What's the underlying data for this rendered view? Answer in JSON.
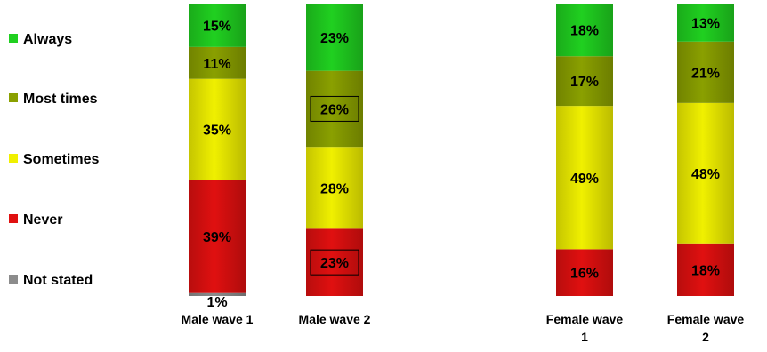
{
  "chart_data": {
    "type": "bar",
    "stacked": true,
    "percent": true,
    "title": "",
    "xlabel": "",
    "ylabel": "",
    "ylim": [
      0,
      100
    ],
    "categories": [
      [
        "Male wave 1"
      ],
      [
        "Male wave 2"
      ],
      [
        "Female wave",
        "1"
      ],
      [
        "Female wave",
        "2"
      ]
    ],
    "series": [
      {
        "name": "Not stated",
        "color": "#8c8c8c",
        "values": [
          1,
          0,
          0,
          0
        ]
      },
      {
        "name": "Never",
        "color": "#e01010",
        "values": [
          39,
          23,
          16,
          18
        ]
      },
      {
        "name": "Sometimes",
        "color": "#f0f000",
        "values": [
          35,
          28,
          49,
          48
        ]
      },
      {
        "name": "Most times",
        "color": "#8aa000",
        "values": [
          11,
          26,
          17,
          21
        ]
      },
      {
        "name": "Always",
        "color": "#20d020",
        "values": [
          15,
          23,
          18,
          13
        ]
      }
    ],
    "value_labels": [
      [
        "1%",
        "39%",
        "35%",
        "11%",
        "15%"
      ],
      [
        "",
        "23%",
        "28%",
        "26%",
        "23%"
      ],
      [
        "",
        "16%",
        "49%",
        "17%",
        "18%"
      ],
      [
        "",
        "18%",
        "48%",
        "21%",
        "13%"
      ]
    ],
    "boxed_labels": [
      {
        "bar": 1,
        "series": "Never"
      },
      {
        "bar": 1,
        "series": "Most times"
      }
    ],
    "legend": {
      "position": "left",
      "items": [
        "Always",
        "Most times",
        "Sometimes",
        "Never",
        "Not stated"
      ]
    },
    "grid": false
  },
  "colors": {
    "Always": "#20d020",
    "Most times": "#8aa000",
    "Sometimes": "#f0f000",
    "Never": "#e01010",
    "Not stated": "#8c8c8c"
  }
}
